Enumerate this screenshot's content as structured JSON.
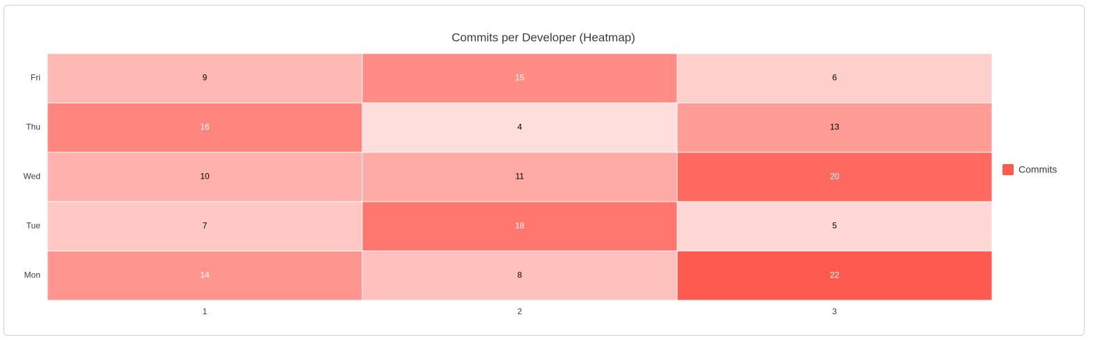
{
  "chart_data": {
    "type": "heatmap",
    "title": "Commits per Developer (Heatmap)",
    "x_categories": [
      "1",
      "2",
      "3"
    ],
    "y_categories": [
      "Mon",
      "Tue",
      "Wed",
      "Thu",
      "Fri"
    ],
    "series": [
      {
        "name": "Commits",
        "color": "#ff5a4f",
        "values": [
          [
            14,
            8,
            22
          ],
          [
            7,
            18,
            5
          ],
          [
            10,
            11,
            20
          ],
          [
            16,
            4,
            13
          ],
          [
            9,
            15,
            6
          ]
        ]
      }
    ],
    "legend": "right"
  }
}
